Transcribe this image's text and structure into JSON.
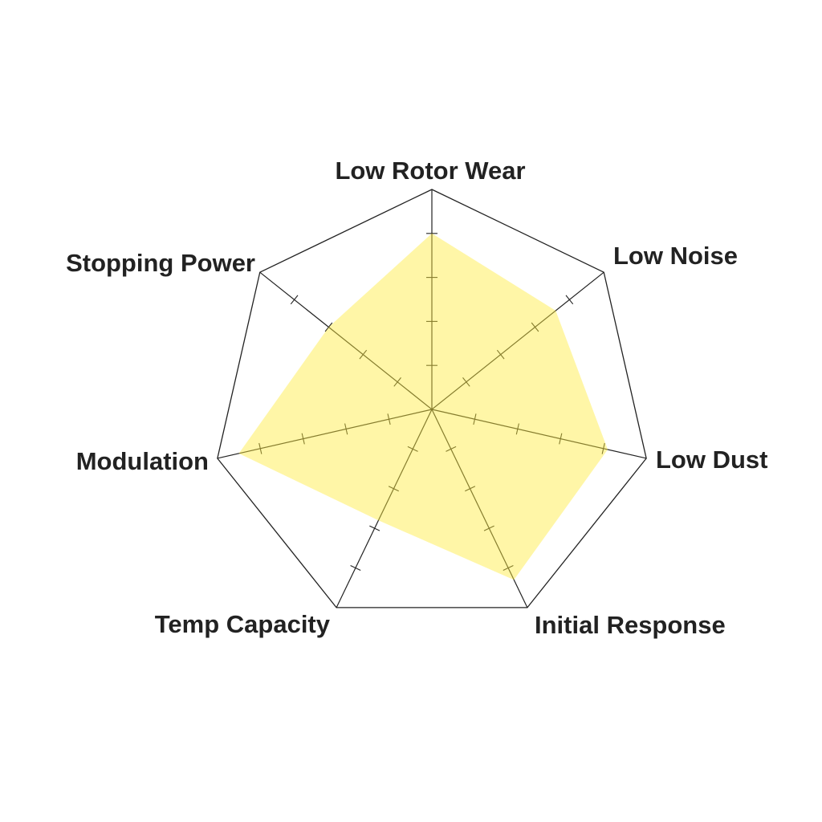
{
  "chart_data": {
    "type": "radar",
    "categories": [
      "Low Rotor Wear",
      "Low Noise",
      "Low Dust",
      "Initial Response",
      "Temp Capacity",
      "Modulation",
      "Stopping Power"
    ],
    "values": [
      4.0,
      3.6,
      4.1,
      4.3,
      2.8,
      4.5,
      3.0
    ],
    "rlim": [
      0,
      5
    ],
    "ticks": [
      1,
      2,
      3,
      4,
      5
    ],
    "grid": true,
    "fill_color": "#fdf6a6",
    "line_color": "#222222"
  }
}
